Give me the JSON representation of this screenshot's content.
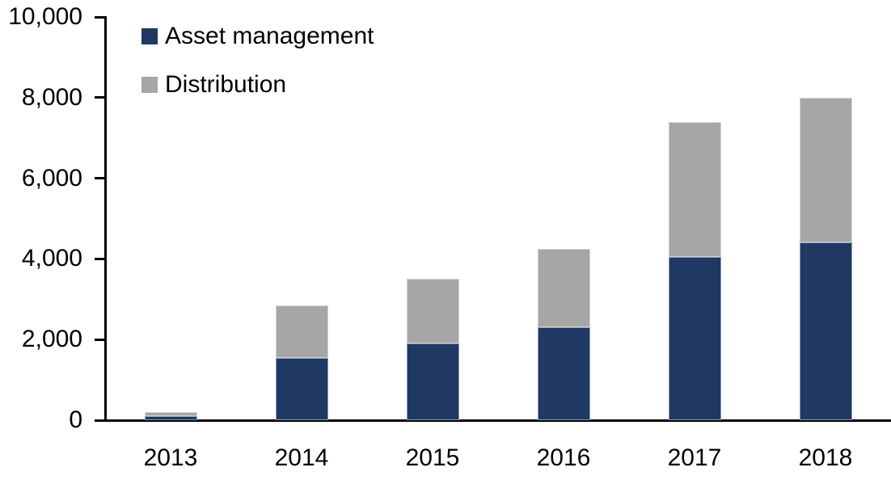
{
  "chart_data": {
    "type": "bar",
    "stacked": true,
    "title": "",
    "xlabel": "",
    "ylabel": "",
    "categories": [
      "2013",
      "2014",
      "2015",
      "2016",
      "2017",
      "2018"
    ],
    "series": [
      {
        "name": "Asset management",
        "color": "#1F3864",
        "values": [
          100,
          1550,
          1900,
          2300,
          4050,
          4400
        ]
      },
      {
        "name": "Distribution",
        "color": "#A6A6A6",
        "values": [
          100,
          1300,
          1600,
          1950,
          3350,
          3600
        ]
      }
    ],
    "totals": [
      200,
      2850,
      3500,
      4250,
      7400,
      8000
    ],
    "ylim": [
      0,
      10000
    ],
    "yticks": [
      {
        "value": 0,
        "label": "0"
      },
      {
        "value": 2000,
        "label": "2,000"
      },
      {
        "value": 4000,
        "label": "4,000"
      },
      {
        "value": 6000,
        "label": "6,000"
      },
      {
        "value": 8000,
        "label": "8,000"
      },
      {
        "value": 10000,
        "label": "10,000"
      }
    ],
    "grid": false,
    "legend_position": "top-left-inside",
    "axis_color": "#000000",
    "text_color": "#000000",
    "background_color": "#FFFFFF"
  }
}
